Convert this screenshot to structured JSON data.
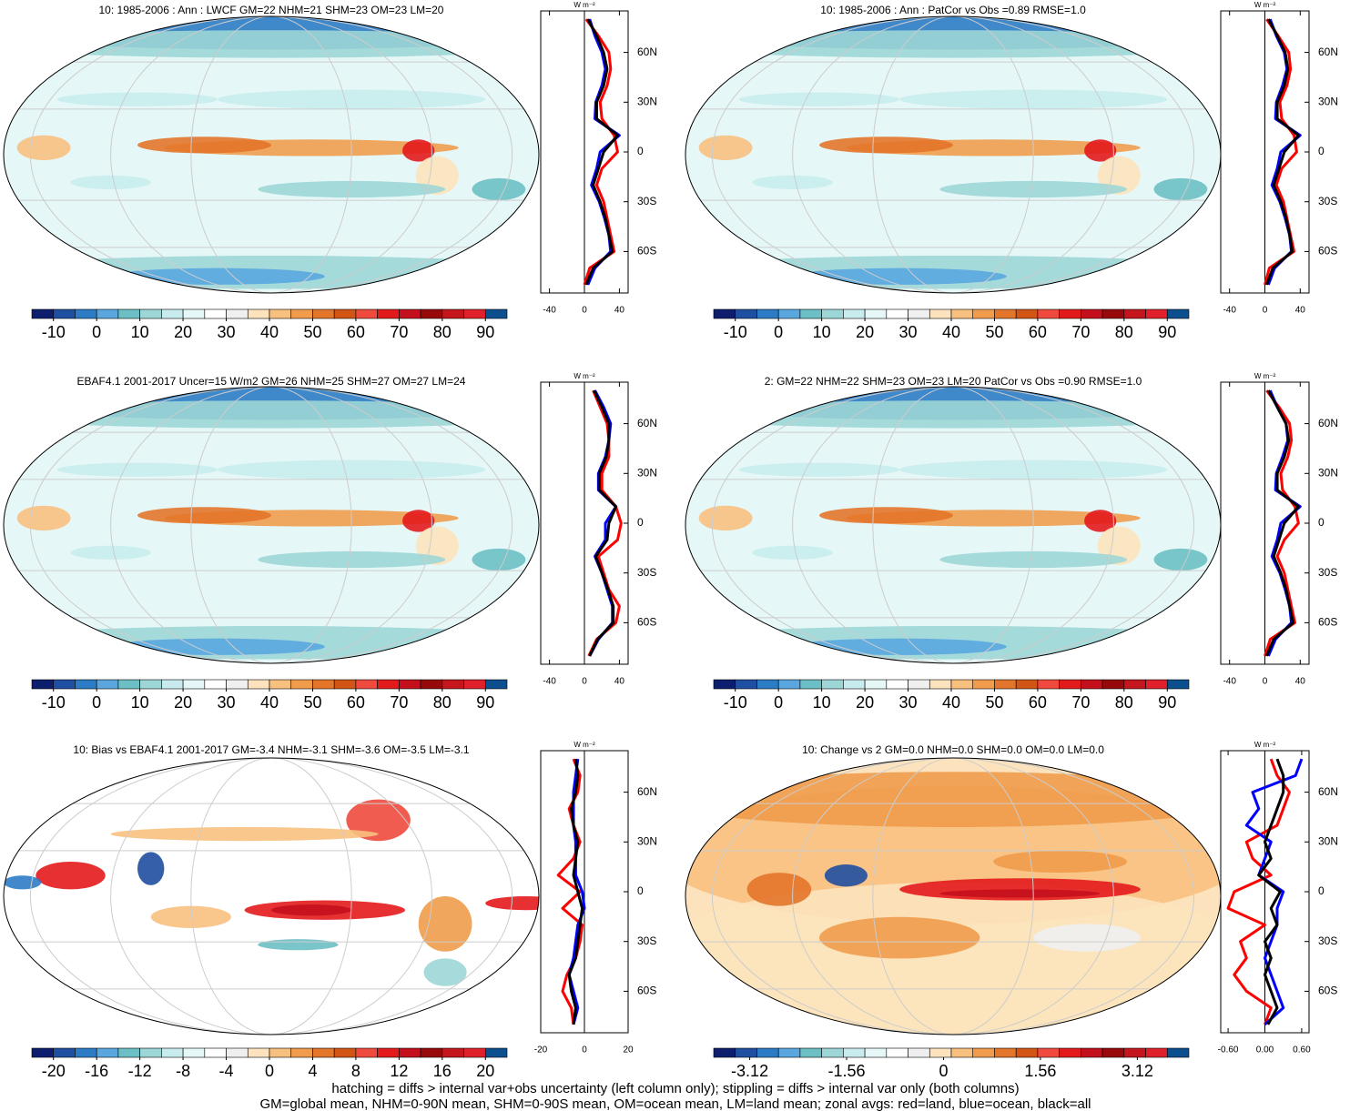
{
  "chart_data": [
    {
      "type": "map",
      "title": "10: 1985-2006 : Ann : LWCF GM=22 NHM=21 SHM=23 OM=23 LM=20",
      "colors": [
        "#0d1e6e",
        "#1f4fa0",
        "#2c7cc5",
        "#5aa7e0",
        "#6cbfc4",
        "#9dd6d6",
        "#c8eced",
        "#e6f7f7",
        "#ffffff",
        "#efefef",
        "#fce3bd",
        "#f8c07f",
        "#f09c4c",
        "#e3762a",
        "#d25516",
        "#f04a3e",
        "#e31a1c",
        "#c4101c",
        "#98090c",
        "#c4161c",
        "#e0202a",
        "#0b4f8e"
      ],
      "clim": [
        -15,
        95
      ],
      "cticks": [
        -10,
        0,
        10,
        20,
        30,
        40,
        50,
        60,
        70,
        80,
        90
      ]
    },
    {
      "type": "line",
      "unit": "W m⁻²",
      "ylim": [
        -85,
        85
      ],
      "xlim": [
        -50,
        50
      ],
      "xticks": [
        -40,
        0,
        40
      ],
      "yticks": [
        {
          "value": 60,
          "label": "60N"
        },
        {
          "value": 30,
          "label": "30N"
        },
        0,
        {
          "value": -30,
          "label": "30S"
        },
        {
          "value": -60,
          "label": "60S"
        }
      ],
      "y": [
        -80,
        -70,
        -60,
        -50,
        -40,
        -30,
        -20,
        -10,
        0,
        10,
        20,
        30,
        40,
        50,
        60,
        70,
        80
      ],
      "series": [
        {
          "color": "#ff0000",
          "values": [
            0,
            6,
            34,
            30,
            26,
            22,
            14,
            20,
            38,
            34,
            20,
            18,
            26,
            30,
            28,
            16,
            2
          ]
        },
        {
          "color": "#0000ff",
          "values": [
            4,
            12,
            30,
            28,
            23,
            17,
            8,
            14,
            18,
            40,
            12,
            13,
            20,
            24,
            20,
            12,
            6
          ]
        },
        {
          "color": "#000000",
          "values": [
            2,
            10,
            32,
            28,
            24,
            18,
            10,
            16,
            22,
            38,
            14,
            14,
            22,
            26,
            22,
            14,
            4
          ]
        }
      ]
    },
    {
      "type": "map",
      "title": "10: 1985-2006 : Ann : PatCor vs Obs =0.89 RMSE=1.0",
      "colors": [
        "#0d1e6e",
        "#1f4fa0",
        "#2c7cc5",
        "#5aa7e0",
        "#6cbfc4",
        "#9dd6d6",
        "#c8eced",
        "#e6f7f7",
        "#ffffff",
        "#efefef",
        "#fce3bd",
        "#f8c07f",
        "#f09c4c",
        "#e3762a",
        "#d25516",
        "#f04a3e",
        "#e31a1c",
        "#c4101c",
        "#98090c",
        "#c4161c",
        "#e0202a",
        "#0b4f8e"
      ],
      "clim": [
        -15,
        95
      ],
      "cticks": [
        -10,
        0,
        10,
        20,
        30,
        40,
        50,
        60,
        70,
        80,
        90
      ]
    },
    {
      "type": "line",
      "unit": "W m⁻²",
      "ylim": [
        -85,
        85
      ],
      "xlim": [
        -50,
        50
      ],
      "xticks": [
        -40,
        0,
        40
      ],
      "yticks": [
        {
          "value": 60,
          "label": "60N"
        },
        {
          "value": 30,
          "label": "30N"
        },
        0,
        {
          "value": -30,
          "label": "30S"
        },
        {
          "value": -60,
          "label": "60S"
        }
      ],
      "y": [
        -80,
        -70,
        -60,
        -50,
        -40,
        -30,
        -20,
        -10,
        0,
        10,
        20,
        30,
        40,
        50,
        60,
        70,
        80
      ],
      "series": [
        {
          "color": "#ff0000",
          "values": [
            0,
            5,
            33,
            29,
            25,
            21,
            13,
            19,
            36,
            33,
            19,
            17,
            25,
            29,
            27,
            15,
            2
          ]
        },
        {
          "color": "#0000ff",
          "values": [
            4,
            11,
            30,
            28,
            23,
            17,
            8,
            14,
            18,
            40,
            12,
            13,
            20,
            25,
            22,
            13,
            6
          ]
        },
        {
          "color": "#000000",
          "values": [
            2,
            9,
            31,
            28,
            24,
            18,
            10,
            16,
            22,
            38,
            14,
            14,
            22,
            26,
            23,
            14,
            4
          ]
        }
      ]
    },
    {
      "type": "map",
      "title": "EBAF4.1 2001-2017 Uncer=15 W/m2 GM=26 NHM=25 SHM=27 OM=27 LM=24",
      "colors": [
        "#0d1e6e",
        "#1f4fa0",
        "#2c7cc5",
        "#5aa7e0",
        "#6cbfc4",
        "#9dd6d6",
        "#c8eced",
        "#e6f7f7",
        "#ffffff",
        "#efefef",
        "#fce3bd",
        "#f8c07f",
        "#f09c4c",
        "#e3762a",
        "#d25516",
        "#f04a3e",
        "#e31a1c",
        "#c4101c",
        "#98090c",
        "#c4161c",
        "#e0202a",
        "#0b4f8e"
      ],
      "clim": [
        -15,
        95
      ],
      "cticks": [
        -10,
        0,
        10,
        20,
        30,
        40,
        50,
        60,
        70,
        80,
        90
      ]
    },
    {
      "type": "line",
      "unit": "W m⁻²",
      "ylim": [
        -85,
        85
      ],
      "xlim": [
        -50,
        50
      ],
      "xticks": [
        -40,
        0,
        40
      ],
      "yticks": [
        {
          "value": 60,
          "label": "60N"
        },
        {
          "value": 30,
          "label": "30N"
        },
        0,
        {
          "value": -30,
          "label": "30S"
        },
        {
          "value": -60,
          "label": "60S"
        }
      ],
      "y": [
        -80,
        -70,
        -60,
        -50,
        -40,
        -30,
        -20,
        -10,
        0,
        10,
        20,
        30,
        40,
        50,
        60,
        70,
        80
      ],
      "series": [
        {
          "color": "#ff0000",
          "values": [
            5,
            14,
            36,
            40,
            28,
            22,
            16,
            38,
            42,
            36,
            20,
            20,
            28,
            28,
            26,
            18,
            10
          ]
        },
        {
          "color": "#0000ff",
          "values": [
            6,
            16,
            32,
            32,
            26,
            20,
            12,
            24,
            24,
            36,
            16,
            16,
            24,
            28,
            30,
            22,
            12
          ]
        },
        {
          "color": "#000000",
          "values": [
            6,
            15,
            33,
            33,
            27,
            20,
            13,
            26,
            28,
            36,
            17,
            17,
            25,
            28,
            28,
            20,
            11
          ]
        }
      ]
    },
    {
      "type": "map",
      "title": "2: GM=22 NHM=22 SHM=23 OM=23 LM=20 PatCor vs Obs =0.90 RMSE=1.0",
      "colors": [
        "#0d1e6e",
        "#1f4fa0",
        "#2c7cc5",
        "#5aa7e0",
        "#6cbfc4",
        "#9dd6d6",
        "#c8eced",
        "#e6f7f7",
        "#ffffff",
        "#efefef",
        "#fce3bd",
        "#f8c07f",
        "#f09c4c",
        "#e3762a",
        "#d25516",
        "#f04a3e",
        "#e31a1c",
        "#c4101c",
        "#98090c",
        "#c4161c",
        "#e0202a",
        "#0b4f8e"
      ],
      "clim": [
        -15,
        95
      ],
      "cticks": [
        -10,
        0,
        10,
        20,
        30,
        40,
        50,
        60,
        70,
        80,
        90
      ]
    },
    {
      "type": "line",
      "unit": "W m⁻²",
      "ylim": [
        -85,
        85
      ],
      "xlim": [
        -50,
        50
      ],
      "xticks": [
        -40,
        0,
        40
      ],
      "yticks": [
        {
          "value": 60,
          "label": "60N"
        },
        {
          "value": 30,
          "label": "30N"
        },
        0,
        {
          "value": -30,
          "label": "30S"
        },
        {
          "value": -60,
          "label": "60S"
        }
      ],
      "y": [
        -80,
        -70,
        -60,
        -50,
        -40,
        -30,
        -20,
        -10,
        0,
        10,
        20,
        30,
        40,
        50,
        60,
        70,
        80
      ],
      "series": [
        {
          "color": "#ff0000",
          "values": [
            0,
            6,
            34,
            30,
            26,
            22,
            14,
            22,
            38,
            34,
            20,
            18,
            26,
            30,
            28,
            16,
            2
          ]
        },
        {
          "color": "#0000ff",
          "values": [
            4,
            12,
            30,
            28,
            23,
            17,
            8,
            14,
            18,
            40,
            12,
            13,
            20,
            26,
            24,
            14,
            6
          ]
        },
        {
          "color": "#000000",
          "values": [
            2,
            10,
            32,
            28,
            24,
            18,
            10,
            16,
            22,
            38,
            14,
            14,
            22,
            27,
            24,
            14,
            4
          ]
        }
      ]
    },
    {
      "type": "map",
      "title": "10: Bias vs EBAF4.1 2001-2017 GM=-3.4 NHM=-3.1 SHM=-3.6 OM=-3.5 LM=-3.1",
      "colors": [
        "#0d1e6e",
        "#1f4fa0",
        "#2c7cc5",
        "#5aa7e0",
        "#6cbfc4",
        "#9dd6d6",
        "#c8eced",
        "#e6f7f7",
        "#ffffff",
        "#efefef",
        "#fce3bd",
        "#f8c07f",
        "#f09c4c",
        "#e3762a",
        "#d25516",
        "#f04a3e",
        "#e31a1c",
        "#c4101c",
        "#98090c",
        "#c4161c",
        "#e0202a",
        "#0b4f8e"
      ],
      "clim": [
        -22,
        22
      ],
      "cticks": [
        -20,
        -16,
        -12,
        -8,
        -4,
        0,
        4,
        8,
        12,
        16,
        20
      ]
    },
    {
      "type": "line",
      "unit": "W m⁻²",
      "ylim": [
        -85,
        85
      ],
      "xlim": [
        -20,
        20
      ],
      "xticks": [
        -20,
        0,
        20
      ],
      "yticks": [
        {
          "value": 60,
          "label": "60N"
        },
        {
          "value": 30,
          "label": "30N"
        },
        0,
        {
          "value": -30,
          "label": "30S"
        },
        {
          "value": -60,
          "label": "60S"
        }
      ],
      "y": [
        -80,
        -70,
        -60,
        -50,
        -40,
        -30,
        -20,
        -10,
        0,
        10,
        20,
        30,
        40,
        50,
        60,
        70,
        80
      ],
      "series": [
        {
          "color": "#ff0000",
          "values": [
            -5,
            -6,
            -10,
            -8,
            -4,
            -2,
            -1,
            -10,
            -2,
            -12,
            -5,
            -2,
            -5,
            -7,
            -3,
            -2,
            -5
          ]
        },
        {
          "color": "#0000ff",
          "values": [
            -5,
            -3,
            -5,
            -7,
            -5,
            -4,
            -3,
            0,
            -1,
            -4,
            -4,
            -4,
            -5,
            -5,
            -5,
            -4,
            -3
          ]
        },
        {
          "color": "#000000",
          "values": [
            -5,
            -4,
            -6,
            -7,
            -4,
            -3,
            -2,
            -1,
            -3,
            -5,
            -4,
            -3,
            -5,
            -6,
            -4,
            -3,
            -4
          ]
        }
      ]
    },
    {
      "type": "map",
      "title": "10: Change vs 2 GM=0.0 NHM=0.0 SHM=0.0 OM=0.0 LM=0.0",
      "colors": [
        "#0d1e6e",
        "#1f4fa0",
        "#2c7cc5",
        "#5aa7e0",
        "#6cbfc4",
        "#9dd6d6",
        "#c8eced",
        "#e6f7f7",
        "#ffffff",
        "#efefef",
        "#fce3bd",
        "#f8c07f",
        "#f09c4c",
        "#e3762a",
        "#d25516",
        "#f04a3e",
        "#e31a1c",
        "#c4101c",
        "#98090c",
        "#c4161c",
        "#e0202a",
        "#0b4f8e"
      ],
      "clim": [
        -3.7,
        3.95
      ],
      "cticks": [
        -3.12,
        -1.56,
        0,
        1.56,
        3.12
      ]
    },
    {
      "type": "line",
      "unit": "W m⁻²",
      "ylim": [
        -85,
        85
      ],
      "xlim": [
        -0.72,
        0.72
      ],
      "xticks": [
        {
          "value": -0.6,
          "label": "-0.60"
        },
        {
          "value": 0,
          "label": "0.00"
        },
        {
          "value": 0.6,
          "label": "0.60"
        }
      ],
      "yticks": [
        {
          "value": 60,
          "label": "60N"
        },
        {
          "value": 30,
          "label": "30N"
        },
        0,
        {
          "value": -30,
          "label": "30S"
        },
        {
          "value": -60,
          "label": "60S"
        }
      ],
      "y": [
        -80,
        -70,
        -60,
        -50,
        -40,
        -30,
        -20,
        -10,
        0,
        10,
        20,
        30,
        40,
        50,
        60,
        70,
        80
      ],
      "series": [
        {
          "color": "#ff0000",
          "values": [
            0,
            0.1,
            -0.3,
            -0.5,
            -0.3,
            -0.4,
            0,
            -0.6,
            -0.5,
            0.1,
            -0.2,
            -0.3,
            0.2,
            0.3,
            0.4,
            0.2,
            0.1
          ]
        },
        {
          "color": "#0000ff",
          "values": [
            0,
            0.3,
            0.2,
            0.1,
            0,
            0.1,
            0.2,
            0.2,
            0.3,
            -0.1,
            0,
            0.1,
            -0.3,
            -0.1,
            -0.2,
            0.5,
            0.6
          ]
        },
        {
          "color": "#000000",
          "values": [
            0.05,
            0.2,
            0.1,
            0,
            0.1,
            0,
            0.2,
            0.1,
            0.25,
            -0.1,
            0.1,
            0,
            0.1,
            0.2,
            0.3,
            0.3,
            0.2
          ]
        }
      ]
    }
  ],
  "footer": [
    "hatching = diffs > internal var+obs uncertainty (left column only); stippling = diffs > internal var only (both columns)",
    "GM=global mean, NHM=0-90N mean, SHM=0-90S mean, OM=ocean mean, LM=land mean; zonal avgs: red=land, blue=ocean, black=all"
  ]
}
